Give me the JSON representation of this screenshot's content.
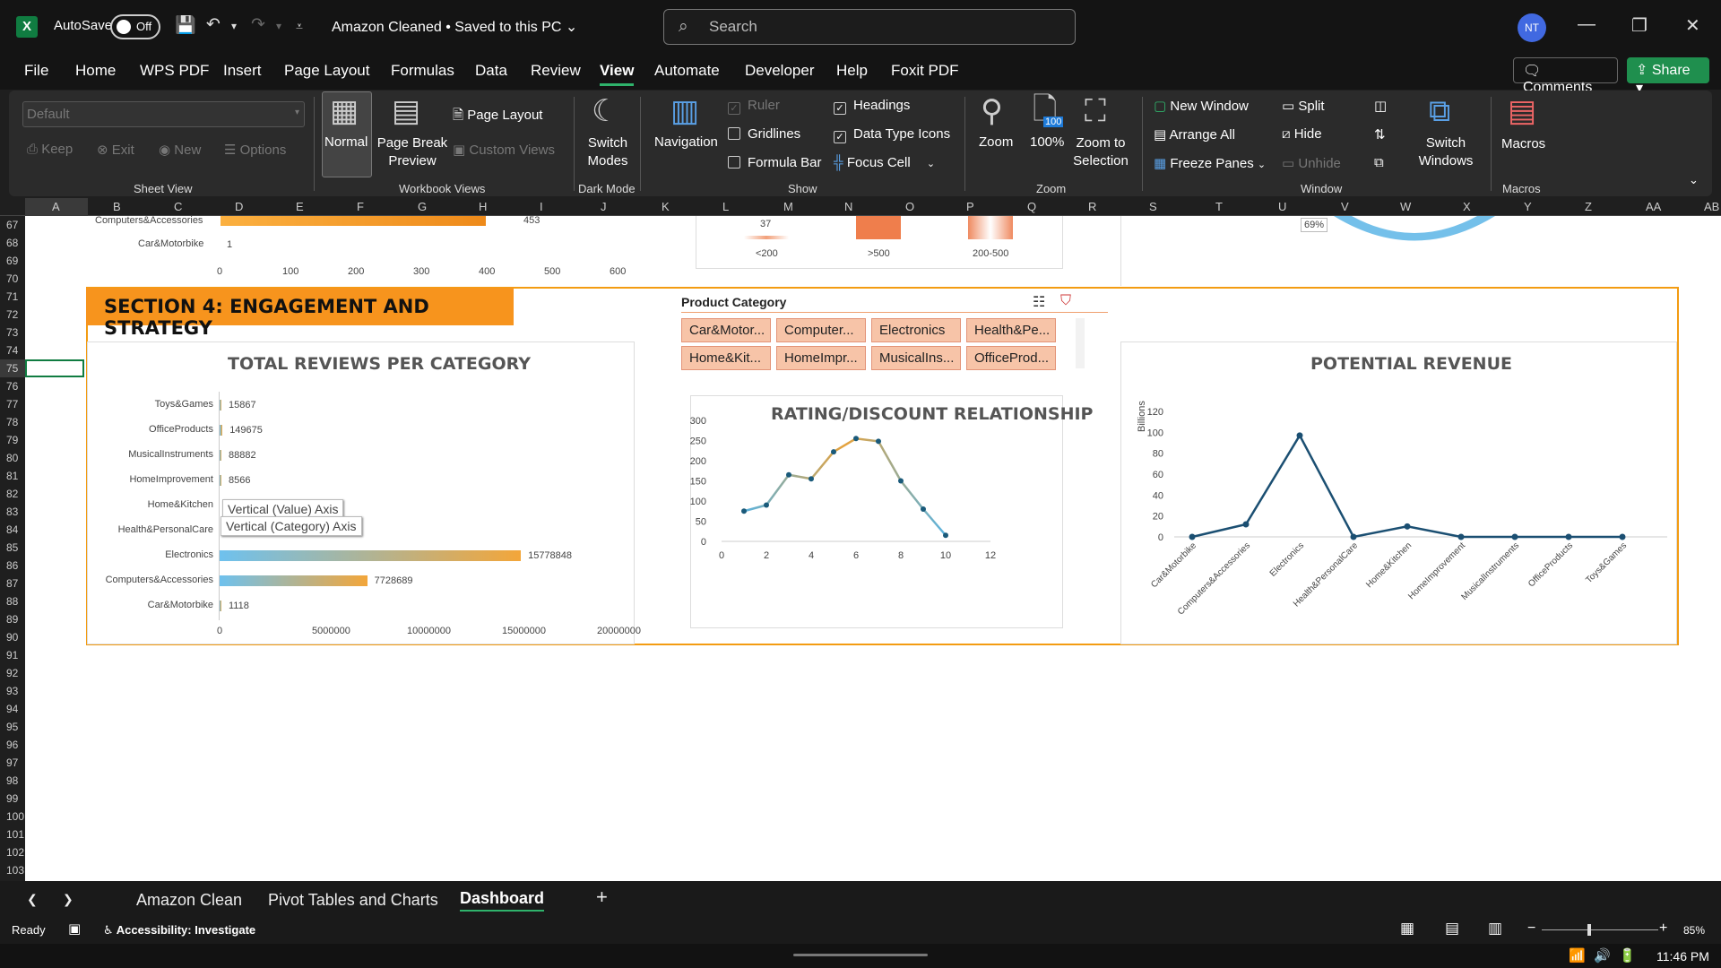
{
  "app": {
    "autosave_label": "AutoSave",
    "autosave_state": "Off",
    "doc_title": "Amazon Cleaned",
    "save_status": "Saved to this PC",
    "search_placeholder": "Search",
    "user_initials": "NT"
  },
  "menu": [
    "File",
    "Home",
    "WPS PDF",
    "Insert",
    "Page Layout",
    "Formulas",
    "Data",
    "Review",
    "View",
    "Automate",
    "Developer",
    "Help",
    "Foxit PDF"
  ],
  "menu_active": "View",
  "comments_label": "Comments",
  "share_label": "Share",
  "ribbon": {
    "sheet_view": {
      "dropdown": "Default",
      "keep": "Keep",
      "exit": "Exit",
      "new": "New",
      "options": "Options",
      "group": "Sheet View"
    },
    "workbook_views": {
      "normal": "Normal",
      "page_break": "Page Break Preview",
      "page_layout": "Page Layout",
      "custom_views": "Custom Views",
      "group": "Workbook Views"
    },
    "dark_mode": {
      "switch": "Switch Modes",
      "group": "Dark Mode"
    },
    "show": {
      "navigation": "Navigation",
      "ruler": "Ruler",
      "gridlines": "Gridlines",
      "formula_bar": "Formula Bar",
      "headings": "Headings",
      "data_type_icons": "Data Type Icons",
      "focus_cell": "Focus Cell",
      "group": "Show"
    },
    "zoom": {
      "zoom": "Zoom",
      "hundred": "100%",
      "hundred_badge": "100",
      "zoom_sel": "Zoom to Selection",
      "group": "Zoom"
    },
    "window": {
      "new_window": "New Window",
      "arrange_all": "Arrange All",
      "freeze": "Freeze Panes",
      "split": "Split",
      "hide": "Hide",
      "unhide": "Unhide",
      "switch": "Switch Windows",
      "group": "Window"
    },
    "macros": {
      "macros": "Macros",
      "group": "Macros"
    }
  },
  "columns": [
    "A",
    "B",
    "C",
    "D",
    "E",
    "F",
    "G",
    "H",
    "I",
    "J",
    "K",
    "L",
    "M",
    "N",
    "O",
    "P",
    "Q",
    "R",
    "S",
    "T",
    "U",
    "V",
    "W",
    "X",
    "Y",
    "Z",
    "AA",
    "AB"
  ],
  "rows": [
    "67",
    "68",
    "69",
    "70",
    "71",
    "72",
    "73",
    "74",
    "75",
    "76",
    "77",
    "78",
    "79",
    "80",
    "81",
    "82",
    "83",
    "84",
    "85",
    "86",
    "87",
    "88",
    "89",
    "90",
    "91",
    "92",
    "93",
    "94",
    "95",
    "96",
    "97",
    "98",
    "99",
    "100",
    "101",
    "102",
    "103"
  ],
  "top_partial": {
    "bar_labels": [
      "Computers&Accessories",
      "Car&Motorbike"
    ],
    "bar_values": [
      "453",
      "1"
    ],
    "axis": [
      "0",
      "100",
      "200",
      "300",
      "400",
      "500",
      "600"
    ],
    "hist_value": "37",
    "hist_cats": [
      "<200",
      ">500",
      "200-500"
    ],
    "donut_label": "69%"
  },
  "section_title": "SECTION 4: ENGAGEMENT AND STRATEGY",
  "slicer": {
    "title": "Product Category",
    "items": [
      "Car&Motor...",
      "Computer...",
      "Electronics",
      "Health&Pe...",
      "Home&Kit...",
      "HomeImpr...",
      "MusicalIns...",
      "OfficeProd..."
    ]
  },
  "tooltips": {
    "value_axis": "Vertical (Value) Axis",
    "category_axis": "Vertical (Category) Axis"
  },
  "chart_data": [
    {
      "type": "bar",
      "title": "TOTAL REVIEWS PER CATEGORY",
      "categories": [
        "Toys&Games",
        "OfficeProducts",
        "MusicalInstruments",
        "HomeImprovement",
        "Home&Kitchen",
        "Health&PersonalCare",
        "Electronics",
        "Computers&Accessories",
        "Car&Motorbike"
      ],
      "values": [
        15867,
        149675,
        88882,
        8566,
        null,
        null,
        15778848,
        7728689,
        1118
      ],
      "value_labels": [
        "15867",
        "149675",
        "88882",
        "8566",
        "",
        "",
        "15778848",
        "7728689",
        "1118"
      ],
      "xlim": [
        0,
        20000000
      ],
      "xticks": [
        "0",
        "5000000",
        "10000000",
        "15000000",
        "20000000"
      ]
    },
    {
      "type": "line",
      "title": "RATING/DISCOUNT RELATIONSHIP",
      "x": [
        1,
        2,
        3,
        4,
        5,
        6,
        7,
        8,
        9,
        10
      ],
      "y": [
        75,
        90,
        165,
        155,
        222,
        255,
        248,
        150,
        80,
        15
      ],
      "xlim": [
        0,
        12
      ],
      "ylim": [
        0,
        300
      ],
      "xticks": [
        "0",
        "2",
        "4",
        "6",
        "8",
        "10",
        "12"
      ],
      "yticks": [
        "0",
        "50",
        "100",
        "150",
        "200",
        "250",
        "300"
      ]
    },
    {
      "type": "line",
      "title": "POTENTIAL REVENUE",
      "ylabel": "Billions",
      "categories": [
        "Car&Motorbike",
        "Computers&Accessories",
        "Electronics",
        "Health&PersonalCare",
        "Home&Kitchen",
        "HomeImprovement",
        "MusicalInstruments",
        "OfficeProducts",
        "Toys&Games"
      ],
      "values": [
        0,
        12,
        97,
        0,
        10,
        0,
        0,
        0,
        0
      ],
      "ylim": [
        0,
        120
      ],
      "yticks": [
        "0",
        "20",
        "40",
        "60",
        "80",
        "100",
        "120"
      ]
    }
  ],
  "sheet_tabs": [
    "Amazon Clean",
    "Pivot Tables and Charts",
    "Dashboard"
  ],
  "active_tab": "Dashboard",
  "status": {
    "ready": "Ready",
    "accessibility": "Accessibility: Investigate",
    "zoom": "85%",
    "time": "11:46 PM"
  }
}
